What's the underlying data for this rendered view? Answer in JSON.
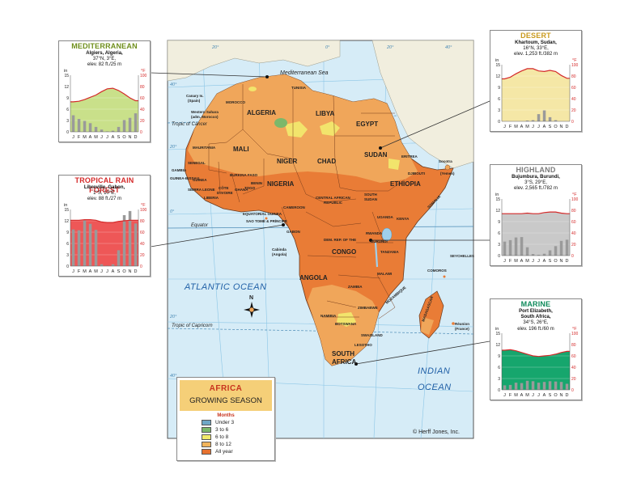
{
  "map": {
    "oceans": {
      "atlantic": "ATLANTIC OCEAN",
      "indian_1": "INDIAN",
      "indian_2": "OCEAN",
      "mediterranean": "Mediterranean Sea"
    },
    "lines": {
      "cancer": "Tropic of Cancer",
      "equator": "Equator",
      "capricorn": "Tropic of Capricorn"
    },
    "graticule": [
      "40°",
      "20°",
      "0°",
      "20°",
      "40°",
      "20°",
      "20°",
      "0°",
      "20°",
      "40°",
      "20°"
    ],
    "compass": "N",
    "countries": {
      "algeria": "ALGERIA",
      "libya": "LIBYA",
      "egypt": "EGYPT",
      "morocco": "MOROCCO",
      "tunisia": "TUNISIA",
      "mauritania": "MAURITANIA",
      "mali": "MALI",
      "niger": "NIGER",
      "chad": "CHAD",
      "sudan": "SUDAN",
      "nigeria": "NIGERIA",
      "ethiopia": "ETHIOPIA",
      "eritrea": "ERITREA",
      "djibouti": "DJIBOUTI",
      "somalia": "SOMALIA",
      "car_1": "CENTRAL AFRICAN",
      "car_2": "REPUBLIC",
      "south_sudan_1": "SOUTH",
      "south_sudan_2": "SUDAN",
      "cameroon": "CAMEROON",
      "gabon": "GABON",
      "congo": "CONGO",
      "drc_1": "DEM. REP. OF THE",
      "kenya": "KENYA",
      "uganda": "UGANDA",
      "tanzania": "TANZANIA",
      "rwanda": "RWANDA",
      "burundi": "BURUNDI",
      "angola": "ANGOLA",
      "zambia": "ZAMBIA",
      "mozambique": "MOZAMBIQUE",
      "zimbabwe": "ZIMBABWE",
      "namibia": "NAMIBIA",
      "botswana": "BOTSWANA",
      "south_africa_1": "SOUTH",
      "south_africa_2": "AFRICA",
      "madagascar": "MADAGASCAR",
      "malawi": "MALAWI",
      "senegal": "SENEGAL",
      "gambia": "GAMBIA",
      "guinea": "GUINEA",
      "guinea_bissau": "GUINEA-BISSAU",
      "sierra_leone": "SIERRA LEONE",
      "liberia": "LIBERIA",
      "cote_1": "CÔTE",
      "cote_2": "D'IVOIRE",
      "burkina": "BURKINA FASO",
      "ghana": "GHANA",
      "togo": "TOGO",
      "benin": "BENIN",
      "eq_guinea": "EQUATORIAL GUINEA",
      "sao_tome": "SAO TOMÉ & PRÍNCIPE",
      "cabinda_1": "Cabinda",
      "cabinda_2": "(Angola)",
      "canary_1": "Canary Is.",
      "canary_2": "(Spain)",
      "w_sahara_1": "Western Sahara",
      "w_sahara_2": "(adm. Morocco)",
      "socotra_1": "Socotra",
      "socotra_2": "(Yemen)",
      "seychelles": "SEYCHELLES",
      "comoros": "COMOROS",
      "reunion_1": "Réunion",
      "reunion_2": "(France)",
      "swaziland": "SWAZILAND",
      "lesotho": "LESOTHO"
    }
  },
  "climate_graphs": [
    {
      "id": "mediterranean",
      "title": "MEDITERRANEAN",
      "city": "Algiers, Algeria,",
      "coords": "37°N, 3°E,",
      "elev": "elev. 82 ft./25 m",
      "title_color": "#6f8f1c",
      "fill_color": "#c9e08a",
      "temp_f": [
        53,
        54,
        57,
        61,
        65,
        71,
        76,
        77,
        73,
        67,
        60,
        55
      ],
      "precip_in": [
        4.4,
        3.4,
        2.9,
        2.3,
        1.3,
        0.6,
        0.1,
        0.3,
        1.3,
        3.1,
        3.7,
        4.9
      ]
    },
    {
      "id": "tropical",
      "title": "TROPICAL RAIN FOREST",
      "city": "Libreville, Gabon,",
      "coords": "1°S, 10°E,",
      "elev": "elev. 88 ft./27 m",
      "title_color": "#d42a2a",
      "fill_color": "#ee5757",
      "temp_f": [
        81,
        81,
        82,
        82,
        81,
        78,
        77,
        77,
        79,
        80,
        81,
        81
      ],
      "precip_in": [
        9.7,
        9.5,
        12.1,
        11.2,
        9.6,
        0.5,
        0.1,
        0.5,
        4.2,
        13.5,
        14.6,
        11.3
      ]
    },
    {
      "id": "desert",
      "title": "DESERT",
      "city": "Khartoum, Sudan,",
      "coords": "16°N, 33°E,",
      "elev": "elev. 1,253 ft./382 m",
      "title_color": "#c99a1e",
      "fill_color": "#f5e7a6",
      "temp_f": [
        75,
        78,
        84,
        89,
        93,
        93,
        89,
        88,
        90,
        88,
        81,
        76
      ],
      "precip_in": [
        0,
        0,
        0,
        0,
        0.2,
        0.3,
        1.9,
        2.9,
        1.1,
        0.3,
        0,
        0
      ]
    },
    {
      "id": "highland",
      "title": "HIGHLAND",
      "city": "Bujumbura, Burundi,",
      "coords": "3°S, 29°E,",
      "elev": "elev. 2,565 ft./782 m",
      "title_color": "#7a7a7a",
      "fill_color": "#c9c9c9",
      "temp_f": [
        74,
        74,
        74,
        74,
        75,
        74,
        74,
        76,
        77,
        77,
        75,
        74
      ],
      "precip_in": [
        3.7,
        4.1,
        4.8,
        4.9,
        2.2,
        0.4,
        0.2,
        0.5,
        1.4,
        2.5,
        3.9,
        4.2
      ]
    },
    {
      "id": "marine",
      "title": "MARINE",
      "city": "Port Elizabeth,",
      "city2": "South Africa,",
      "coords": "34°S, 26°E,",
      "elev": "elev. 196 ft./60 m",
      "title_color": "#0e8a5a",
      "fill_color": "#16a66d",
      "temp_f": [
        70,
        71,
        69,
        66,
        63,
        60,
        59,
        60,
        61,
        63,
        66,
        68
      ],
      "precip_in": [
        1.2,
        1.3,
        1.9,
        1.8,
        2.4,
        2.3,
        1.9,
        2.1,
        2.3,
        2.2,
        2.1,
        1.6
      ]
    }
  ],
  "graph_axis": {
    "left_unit": "in",
    "right_unit": "°F",
    "left_ticks": [
      "15",
      "12",
      "9",
      "6",
      "3",
      "0"
    ],
    "right_ticks": [
      "100",
      "80",
      "60",
      "40",
      "20",
      "0"
    ],
    "months": [
      "J",
      "F",
      "M",
      "A",
      "M",
      "J",
      "J",
      "A",
      "S",
      "O",
      "N",
      "D"
    ],
    "precip_max": 15,
    "temp_max": 100,
    "temp_color": "#d42a2a",
    "precip_color": "#9a9a9a"
  },
  "legend": {
    "title_a": "AFRICA",
    "title_b": "GROWING SEASON",
    "months_label": "Months",
    "items": [
      {
        "label": "Under 3",
        "color": "#6fa7c7"
      },
      {
        "label": "3 to 6",
        "color": "#7cb86a"
      },
      {
        "label": "6 to 8",
        "color": "#f2ea6b"
      },
      {
        "label": "8 to 12",
        "color": "#f2b45c"
      },
      {
        "label": "All year",
        "color": "#e7722f"
      }
    ]
  },
  "credit": "© Herff Jones, Inc."
}
